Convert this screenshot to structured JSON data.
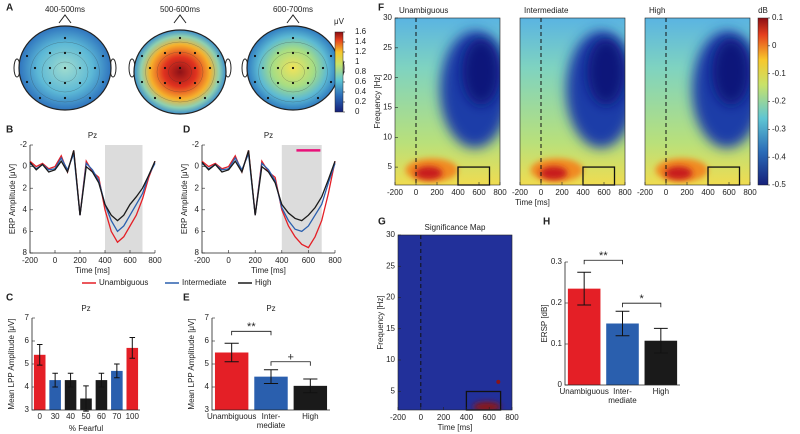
{
  "chart_data": [
    {
      "type": "topomap",
      "panel": "A",
      "titles": [
        "400-500ms",
        "500-600ms",
        "600-700ms"
      ],
      "colorbar_label": "μV",
      "clim": [
        0,
        1.6
      ],
      "cticks": [
        0,
        0.2,
        0.4,
        0.6,
        0.8,
        1,
        1.2,
        1.4,
        1.6
      ]
    },
    {
      "type": "line",
      "panel": "B",
      "title": "Pz",
      "xlabel": "Time [ms]",
      "ylabel": "ERP Amplitude [μV]",
      "x": [
        -200,
        -150,
        -100,
        -50,
        0,
        50,
        100,
        150,
        200,
        250,
        300,
        350,
        400,
        450,
        500,
        550,
        600,
        650,
        700,
        750,
        800
      ],
      "series": [
        {
          "name": "Unambiguous",
          "color": "#e41f26",
          "values": [
            -0.5,
            0,
            -0.3,
            0.2,
            0,
            -1,
            0.5,
            -1.5,
            4.5,
            -0.5,
            0.5,
            1,
            4,
            6,
            7,
            6.5,
            5.5,
            4.5,
            3,
            1,
            -0.5
          ]
        },
        {
          "name": "Intermediate",
          "color": "#2a5fae",
          "values": [
            -0.3,
            0.2,
            -0.2,
            0.3,
            0.2,
            -0.8,
            0.3,
            -1.2,
            4.5,
            -0.3,
            0.3,
            1.3,
            3.5,
            5,
            6,
            5.5,
            4.5,
            3.5,
            2.5,
            0.8,
            -0.3
          ]
        },
        {
          "name": "High",
          "color": "#1a1a1a",
          "values": [
            -0.4,
            0.3,
            -0.2,
            0.5,
            0.3,
            -0.5,
            0.5,
            -1.5,
            4.5,
            0,
            0.5,
            1.5,
            3.5,
            4.5,
            5,
            4.5,
            3.5,
            2.8,
            2,
            0.8,
            -0.5
          ]
        }
      ],
      "xlim": [
        -200,
        800
      ],
      "xticks": [
        -200,
        0,
        200,
        400,
        600,
        800
      ],
      "ylim": [
        -2,
        8
      ],
      "yticks": [
        -2,
        0,
        2,
        4,
        6,
        8
      ],
      "y_inverted": true,
      "highlight": [
        400,
        700
      ]
    },
    {
      "type": "bar",
      "panel": "C",
      "title": "Pz",
      "xlabel": "% Fearful",
      "ylabel": "Mean LPP Amplitude [μV]",
      "categories": [
        "0",
        "30",
        "40",
        "50",
        "60",
        "70",
        "100"
      ],
      "values": [
        5.4,
        4.3,
        4.3,
        3.5,
        4.3,
        4.7,
        5.7
      ],
      "errors": [
        0.45,
        0.3,
        0.3,
        0.55,
        0.3,
        0.3,
        0.45
      ],
      "colors": [
        "#e41f26",
        "#2a5fae",
        "#1a1a1a",
        "#1a1a1a",
        "#1a1a1a",
        "#2a5fae",
        "#e41f26"
      ],
      "ylim": [
        3,
        7
      ],
      "yticks": [
        3,
        4,
        5,
        6,
        7
      ]
    },
    {
      "type": "line",
      "panel": "D",
      "title": "Pz",
      "xlabel": "Time [ms]",
      "ylabel": "ERP Amplitude [μV]",
      "x": [
        -200,
        -150,
        -100,
        -50,
        0,
        50,
        100,
        150,
        200,
        250,
        300,
        350,
        400,
        450,
        500,
        550,
        600,
        650,
        700,
        750,
        800
      ],
      "series": [
        {
          "color": "#e41f26",
          "values": [
            -0.5,
            0,
            -0.3,
            0.2,
            0,
            -1,
            0.5,
            -1.5,
            4.5,
            -0.5,
            0.5,
            1,
            4,
            5.5,
            6.5,
            7.2,
            7.5,
            6.5,
            5,
            2.5,
            -0.5
          ]
        },
        {
          "color": "#2a5fae",
          "values": [
            -0.3,
            0.2,
            -0.2,
            0.3,
            0.2,
            -0.8,
            0.3,
            -1.2,
            4.5,
            -0.3,
            0.3,
            1.3,
            3.8,
            5,
            5.8,
            6,
            5.5,
            4.5,
            3.5,
            1.5,
            -0.3
          ]
        },
        {
          "color": "#1a1a1a",
          "values": [
            -0.4,
            0.3,
            -0.2,
            0.5,
            0.3,
            -0.5,
            0.5,
            -1.5,
            4.5,
            0,
            0.5,
            1.5,
            3.5,
            4.3,
            4.8,
            5,
            4.5,
            3.8,
            2.8,
            1.2,
            -0.5
          ]
        }
      ],
      "xlim": [
        -200,
        800
      ],
      "xticks": [
        -200,
        0,
        200,
        400,
        600,
        800
      ],
      "ylim": [
        -2,
        8
      ],
      "yticks": [
        -2,
        0,
        2,
        4,
        6,
        8
      ],
      "y_inverted": true,
      "highlight": [
        400,
        700
      ],
      "significance": {
        "x": [
          510,
          690
        ],
        "y": -1.5,
        "color": "#e8127a"
      }
    },
    {
      "type": "bar",
      "panel": "E",
      "title": "Pz",
      "ylabel": "Mean LPP Amplitude [μV]",
      "categories": [
        "Unambiguous",
        "Inter-\nmediate",
        "High"
      ],
      "values": [
        5.5,
        4.45,
        4.05
      ],
      "errors": [
        0.4,
        0.3,
        0.3
      ],
      "colors": [
        "#e41f26",
        "#2a5fae",
        "#1a1a1a"
      ],
      "ylim": [
        3,
        7
      ],
      "yticks": [
        3,
        4,
        5,
        6,
        7
      ],
      "brackets": [
        {
          "pair": [
            0,
            1
          ],
          "label": "**"
        },
        {
          "pair": [
            1,
            2
          ],
          "label": "+"
        }
      ]
    },
    {
      "type": "heatmap",
      "panel": "F",
      "titles": [
        "Unambiguous",
        "Intermediate",
        "High"
      ],
      "xlabel": "Time [ms]",
      "ylabel": "Frequency [Hz]",
      "xlim": [
        -200,
        800
      ],
      "xticks": [
        -200,
        0,
        200,
        400,
        600,
        800
      ],
      "ylim": [
        2,
        30
      ],
      "yticks": [
        5,
        10,
        15,
        20,
        25,
        30
      ],
      "window": {
        "x": [
          400,
          700
        ],
        "y": [
          2,
          4
        ]
      },
      "colorbar_label": "dB",
      "clim": [
        -0.5,
        0.1
      ],
      "cticks": [
        0.1,
        0,
        -0.1,
        -0.2,
        -0.3,
        -0.4,
        -0.5
      ]
    },
    {
      "type": "heatmap",
      "panel": "G",
      "titles": [
        "Significance Map"
      ],
      "xlabel": "Time [ms]",
      "ylabel": "Frequency [Hz]",
      "xlim": [
        -200,
        800
      ],
      "xticks": [
        -200,
        0,
        200,
        400,
        600,
        800
      ],
      "ylim": [
        2,
        30
      ],
      "yticks": [
        5,
        10,
        15,
        20,
        25,
        30
      ],
      "window": {
        "x": [
          400,
          700
        ],
        "y": [
          2,
          4
        ]
      }
    },
    {
      "type": "bar",
      "panel": "H",
      "ylabel": "ERSP [dB]",
      "categories": [
        "Unambiguous",
        "Inter-\nmediate",
        "High"
      ],
      "values": [
        0.235,
        0.15,
        0.108
      ],
      "errors": [
        0.04,
        0.03,
        0.03
      ],
      "colors": [
        "#e41f26",
        "#2a5fae",
        "#1a1a1a"
      ],
      "ylim": [
        0,
        0.3
      ],
      "yticks": [
        0,
        0.1,
        0.2,
        0.3
      ],
      "brackets": [
        {
          "pair": [
            0,
            1
          ],
          "label": "**"
        },
        {
          "pair": [
            1,
            2
          ],
          "label": "*"
        }
      ]
    }
  ]
}
